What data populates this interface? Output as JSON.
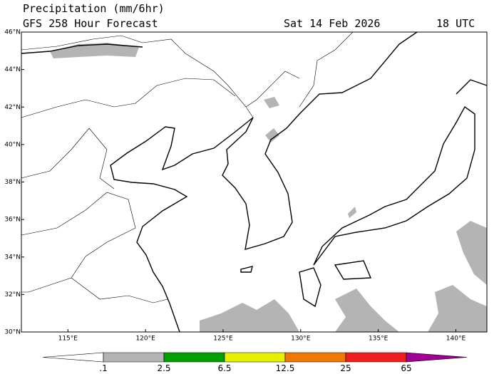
{
  "header": {
    "title": "Precipitation (mm/6hr)",
    "model_run": "GFS 258 Hour Forecast",
    "valid_date": "Sat 14 Feb 2026",
    "valid_time": "18 UTC"
  },
  "map": {
    "lonlim": [
      112,
      142
    ],
    "latlim": [
      30,
      46
    ],
    "lon_ticks": [
      {
        "value": 115,
        "label": "115°E"
      },
      {
        "value": 120,
        "label": "120°E"
      },
      {
        "value": 125,
        "label": "125°E"
      },
      {
        "value": 130,
        "label": "130°E"
      },
      {
        "value": 135,
        "label": "135°E"
      },
      {
        "value": 140,
        "label": "140°E"
      }
    ],
    "lat_ticks": [
      {
        "value": 30,
        "label": "30°N"
      },
      {
        "value": 32,
        "label": "32°N"
      },
      {
        "value": 34,
        "label": "34°N"
      },
      {
        "value": 36,
        "label": "36°N"
      },
      {
        "value": 38,
        "label": "38°N"
      },
      {
        "value": 40,
        "label": "40°N"
      },
      {
        "value": 42,
        "label": "42°N"
      },
      {
        "value": 44,
        "label": "44°N"
      },
      {
        "value": 46,
        "label": "46°N"
      }
    ]
  },
  "colorbar": {
    "levels": [
      ".1",
      "2.5",
      "6.5",
      "12.5",
      "25",
      "65"
    ],
    "colors": [
      "#ffffff",
      "#b4b4b4",
      "#00a000",
      "#e6f000",
      "#f07800",
      "#f01e1e",
      "#a00096"
    ]
  }
}
